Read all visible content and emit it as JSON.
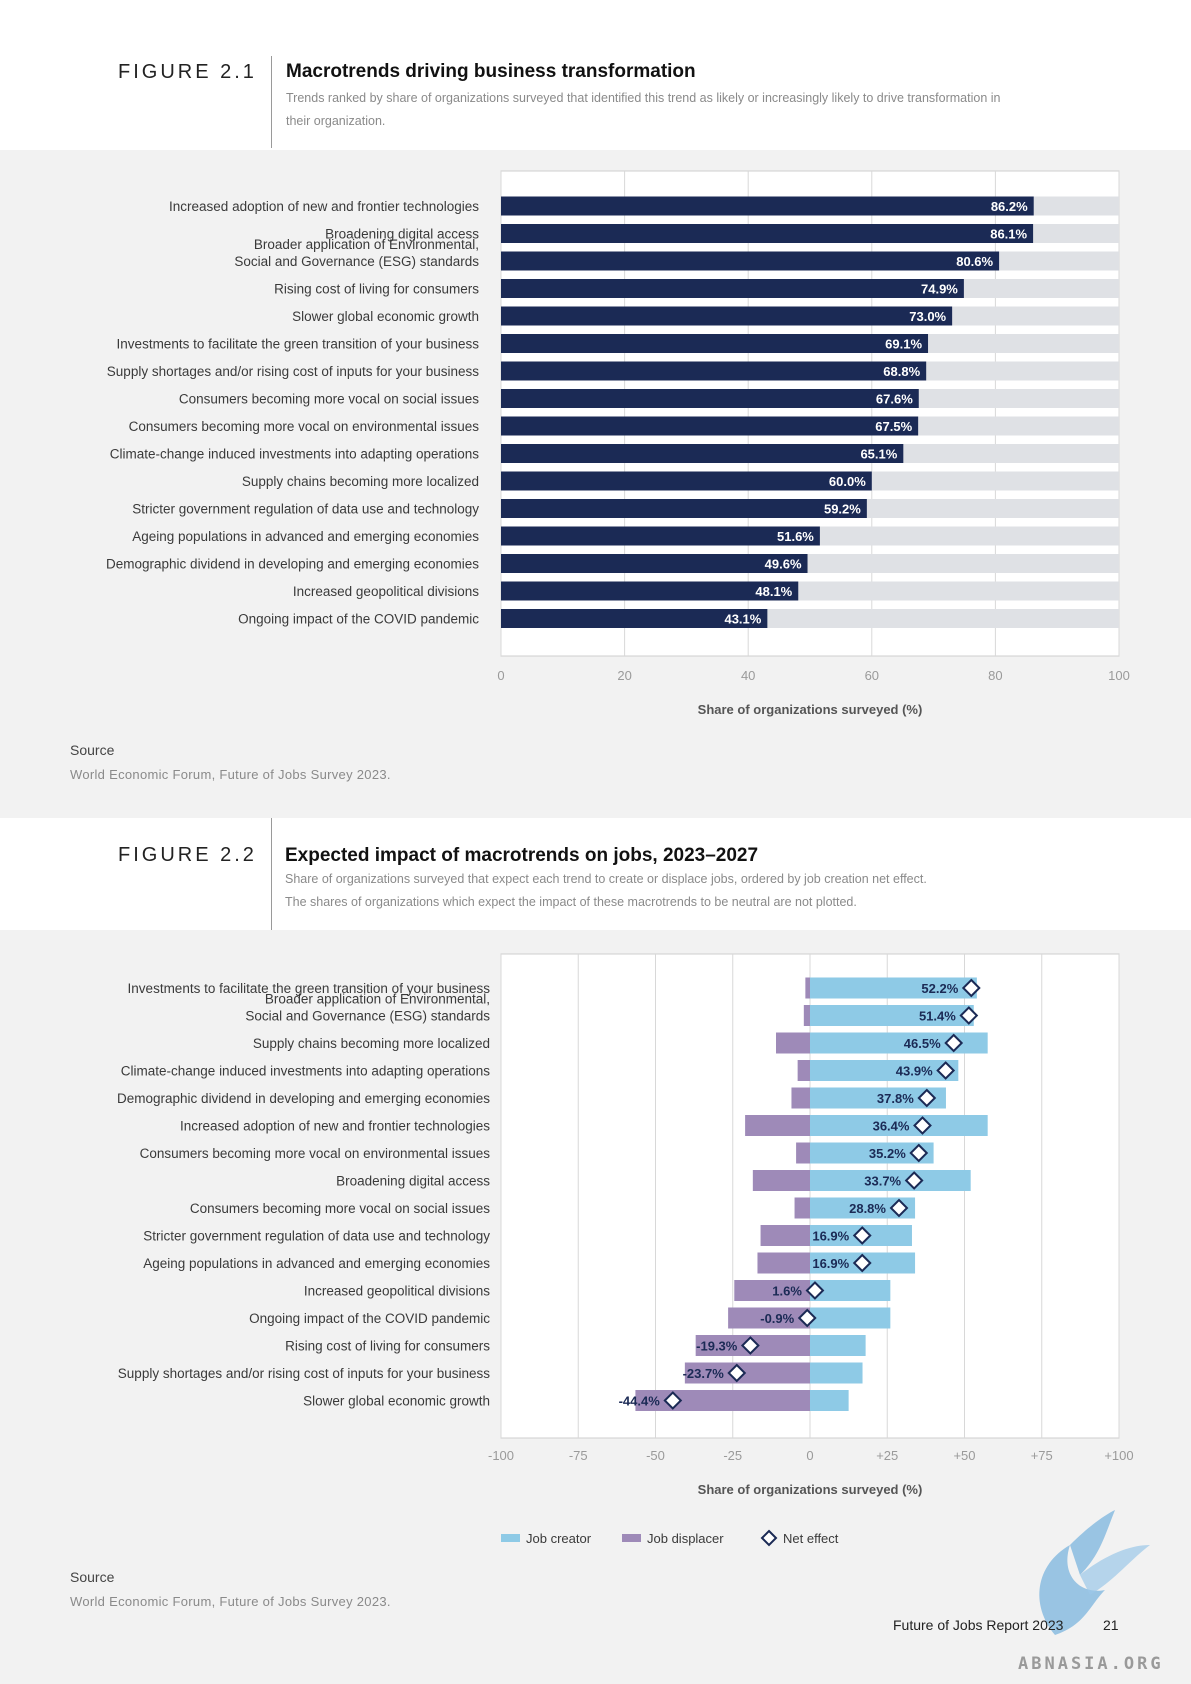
{
  "figure1": {
    "label": "FIGURE 2.1",
    "title": "Macrotrends driving business transformation",
    "subtitle_lines": [
      "Trends ranked by share of organizations surveyed that identified this trend as likely or increasingly likely to drive transformation in",
      "their organization."
    ],
    "source_label": "Source",
    "source_text": "World Economic Forum, Future of Jobs Survey 2023."
  },
  "figure2": {
    "label": "FIGURE 2.2",
    "title": "Expected impact of macrotrends on jobs, 2023–2027",
    "subtitle_lines": [
      "Share of organizations surveyed that expect each trend to create or displace jobs, ordered by job creation net effect.",
      "The shares of organizations which expect the impact of these macrotrends to be neutral are not plotted."
    ],
    "source_label": "Source",
    "source_text": "World Economic Forum, Future of Jobs Survey 2023."
  },
  "footer": {
    "report": "Future of Jobs Report 2023",
    "page": "21",
    "watermark": "ABNASIA.ORG"
  },
  "colors": {
    "bar_dark": "#1b2a55",
    "bar_track": "#dfe1e5",
    "creator": "#8ecae6",
    "displacer": "#9e8ab8",
    "net_stroke": "#1b2a55"
  },
  "chart_data": [
    {
      "type": "bar",
      "orientation": "horizontal",
      "categories": [
        [
          "Increased adoption of new and frontier technologies"
        ],
        [
          "Broadening digital access"
        ],
        [
          "Broader application of Environmental,",
          "Social and Governance (ESG) standards"
        ],
        [
          "Rising cost of living for consumers"
        ],
        [
          "Slower global economic growth"
        ],
        [
          "Investments to facilitate the green transition of your business"
        ],
        [
          "Supply shortages and/or rising cost of inputs for your business"
        ],
        [
          "Consumers becoming more vocal on social issues"
        ],
        [
          "Consumers becoming more vocal on environmental issues"
        ],
        [
          "Climate-change induced investments into adapting operations"
        ],
        [
          "Supply chains becoming more localized"
        ],
        [
          "Stricter government regulation of data use and technology"
        ],
        [
          "Ageing populations in advanced and emerging economies"
        ],
        [
          "Demographic dividend in developing and emerging economies"
        ],
        [
          "Increased geopolitical divisions"
        ],
        [
          "Ongoing impact of the COVID pandemic"
        ]
      ],
      "values": [
        86.2,
        86.1,
        80.6,
        74.9,
        73.0,
        69.1,
        68.8,
        67.6,
        67.5,
        65.1,
        60.0,
        59.2,
        51.6,
        49.6,
        48.1,
        43.1
      ],
      "value_labels": [
        "86.2%",
        "86.1%",
        "80.6%",
        "74.9%",
        "73.0%",
        "69.1%",
        "68.8%",
        "67.6%",
        "67.5%",
        "65.1%",
        "60.0%",
        "59.2%",
        "51.6%",
        "49.6%",
        "48.1%",
        "43.1%"
      ],
      "xlim": [
        0,
        100
      ],
      "xticks": [
        0,
        20,
        40,
        60,
        80,
        100
      ],
      "xtick_labels": [
        "0",
        "20",
        "40",
        "60",
        "80",
        "100"
      ],
      "xlabel": "Share of organizations surveyed (%)",
      "grid": true
    },
    {
      "type": "bar",
      "orientation": "horizontal",
      "stacked": "diverging",
      "categories": [
        [
          "Investments to facilitate the green transition of your business"
        ],
        [
          "Broader application of Environmental,",
          "Social and Governance (ESG) standards"
        ],
        [
          "Supply chains becoming more localized"
        ],
        [
          "Climate-change induced investments into adapting operations"
        ],
        [
          "Demographic dividend in developing and emerging economies"
        ],
        [
          "Increased adoption of new and frontier technologies"
        ],
        [
          "Consumers becoming more vocal on environmental issues"
        ],
        [
          "Broadening digital access"
        ],
        [
          "Consumers becoming more vocal on social issues"
        ],
        [
          "Stricter government regulation of data use and technology"
        ],
        [
          "Ageing populations in advanced and emerging economies"
        ],
        [
          "Increased geopolitical divisions"
        ],
        [
          "Ongoing impact of the COVID pandemic"
        ],
        [
          "Rising cost of living for consumers"
        ],
        [
          "Supply shortages and/or rising cost of inputs for your business"
        ],
        [
          "Slower global economic growth"
        ]
      ],
      "series": [
        {
          "name": "Job creator",
          "values": [
            54,
            53,
            57.5,
            48,
            44,
            57.5,
            40,
            52,
            34,
            33,
            34,
            26,
            26,
            18,
            17,
            12.5
          ]
        },
        {
          "name": "Job displacer",
          "values": [
            -1.5,
            -2,
            -11,
            -4,
            -6,
            -21,
            -4.5,
            -18.5,
            -5,
            -16,
            -17,
            -24.5,
            -26.5,
            -37,
            -40.5,
            -56.5
          ]
        },
        {
          "name": "Net effect",
          "values": [
            52.2,
            51.4,
            46.5,
            43.9,
            37.8,
            36.4,
            35.2,
            33.7,
            28.8,
            16.9,
            16.9,
            1.6,
            -0.9,
            -19.3,
            -23.7,
            -44.4
          ]
        }
      ],
      "net_labels": [
        "52.2%",
        "51.4%",
        "46.5%",
        "43.9%",
        "37.8%",
        "36.4%",
        "35.2%",
        "33.7%",
        "28.8%",
        "16.9%",
        "16.9%",
        "1.6%",
        "-0.9%",
        "-19.3%",
        "-23.7%",
        "-44.4%"
      ],
      "xlim": [
        -100,
        100
      ],
      "xticks": [
        -100,
        -75,
        -50,
        -25,
        0,
        25,
        50,
        75,
        100
      ],
      "xtick_labels": [
        "-100",
        "-75",
        "-50",
        "-25",
        "0",
        "+25",
        "+50",
        "+75",
        "+100"
      ],
      "xlabel": "Share of organizations surveyed (%)",
      "legend": [
        "Job creator",
        "Job displacer",
        "Net effect"
      ],
      "legend_position": "bottom",
      "grid": true
    }
  ]
}
